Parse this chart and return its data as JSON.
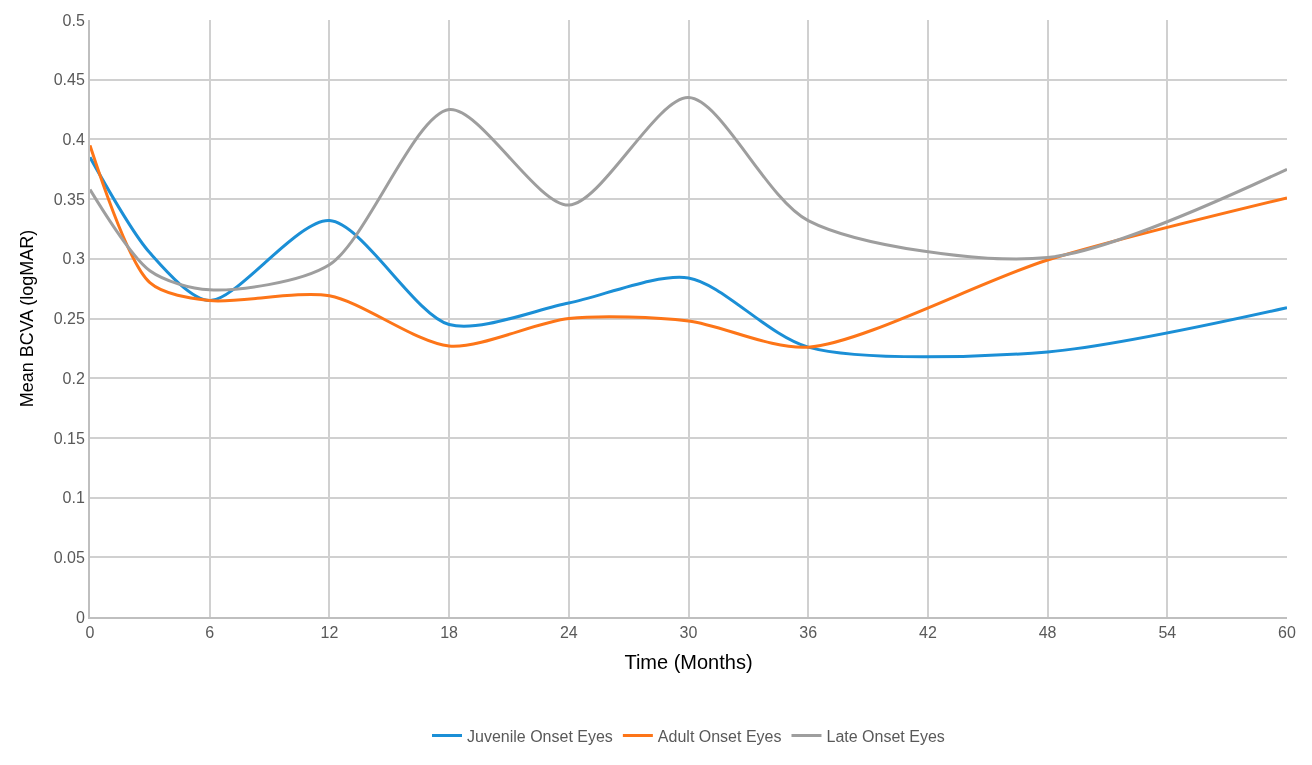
{
  "chart_data": {
    "type": "line",
    "xlabel": "Time (Months)",
    "ylabel": "Mean BCVA (logMAR)",
    "x": [
      0,
      3,
      6,
      12,
      18,
      24,
      30,
      36,
      48,
      60
    ],
    "series": [
      {
        "name": "Juvenile Onset Eyes",
        "color": "#1b8fd6",
        "values": [
          0.385,
          0.305,
          0.265,
          0.332,
          0.245,
          0.263,
          0.284,
          0.226,
          0.222,
          0.259
        ]
      },
      {
        "name": "Adult Onset Eyes",
        "color": "#fd7518",
        "values": [
          0.395,
          0.28,
          0.265,
          0.269,
          0.227,
          0.25,
          0.248,
          0.226,
          0.299,
          0.351
        ]
      },
      {
        "name": "Late Onset Eyes",
        "color": "#9e9e9e",
        "values": [
          0.358,
          0.29,
          0.274,
          0.295,
          0.425,
          0.345,
          0.435,
          0.332,
          0.301,
          0.375
        ]
      }
    ],
    "xlim": [
      0,
      60
    ],
    "xticks": [
      0,
      6,
      12,
      18,
      24,
      30,
      36,
      42,
      48,
      54,
      60
    ],
    "ylim": [
      0,
      0.5
    ],
    "yticks": [
      0,
      0.05,
      0.1,
      0.15,
      0.2,
      0.25,
      0.3,
      0.35,
      0.4,
      0.45,
      0.5
    ],
    "grid": true,
    "legend": "bottom",
    "marker": "none",
    "line_style": "solid"
  }
}
